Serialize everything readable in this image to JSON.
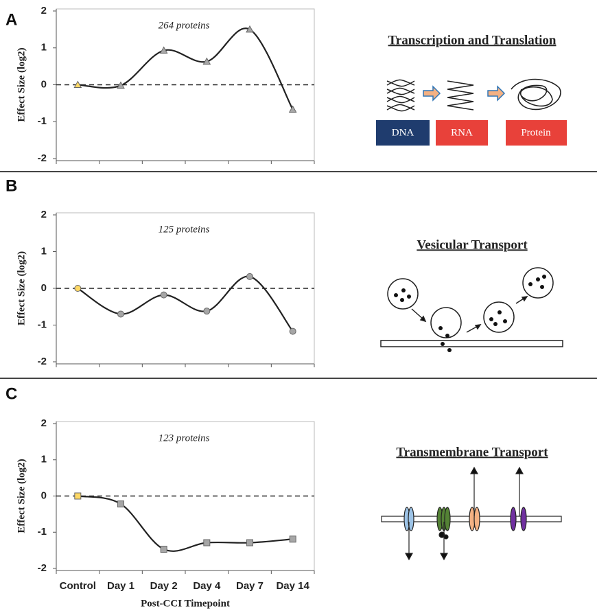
{
  "chart_data": [
    {
      "type": "line",
      "panel": "A",
      "annotation": "264 proteins",
      "y_label": "Effect Size (log2)",
      "ylim": [
        -2,
        2
      ],
      "yticks": [
        -2,
        -1,
        0,
        1,
        2
      ],
      "hline": 0,
      "marker": "triangle",
      "series": [
        {
          "values": [
            0,
            -0.02,
            0.93,
            0.63,
            1.5,
            -0.67
          ],
          "color": "#222222",
          "marker_colors": [
            "#ffd966",
            "#a6a6a6",
            "#a6a6a6",
            "#a6a6a6",
            "#a6a6a6",
            "#a6a6a6"
          ]
        }
      ],
      "diagram": {
        "title": "Transcription and Translation",
        "labels": [
          "DNA",
          "RNA",
          "Protein"
        ]
      }
    },
    {
      "type": "line",
      "panel": "B",
      "annotation": "125 proteins",
      "y_label": "Effect Size (log2)",
      "ylim": [
        -2,
        2
      ],
      "yticks": [
        -2,
        -1,
        0,
        1,
        2
      ],
      "hline": 0,
      "marker": "circle",
      "series": [
        {
          "values": [
            0,
            -0.7,
            -0.18,
            -0.62,
            0.32,
            -1.17
          ],
          "color": "#222222",
          "marker_colors": [
            "#ffd966",
            "#a6a6a6",
            "#a6a6a6",
            "#a6a6a6",
            "#a6a6a6",
            "#a6a6a6"
          ]
        }
      ],
      "diagram": {
        "title": "Vesicular Transport"
      }
    },
    {
      "type": "line",
      "panel": "C",
      "annotation": "123 proteins",
      "y_label": "Effect Size (log2)",
      "x_label": "Post-CCI Timepoint",
      "categories": [
        "Control",
        "Day 1",
        "Day 2",
        "Day 4",
        "Day 7",
        "Day 14"
      ],
      "ylim": [
        -2,
        2
      ],
      "yticks": [
        -2,
        -1,
        0,
        1,
        2
      ],
      "hline": 0,
      "marker": "square",
      "series": [
        {
          "values": [
            0,
            -0.22,
            -1.47,
            -1.29,
            -1.29,
            -1.19
          ],
          "color": "#222222",
          "marker_colors": [
            "#ffd966",
            "#a6a6a6",
            "#a6a6a6",
            "#a6a6a6",
            "#a6a6a6",
            "#a6a6a6"
          ]
        }
      ],
      "diagram": {
        "title": "Transmembrane Transport"
      }
    }
  ]
}
